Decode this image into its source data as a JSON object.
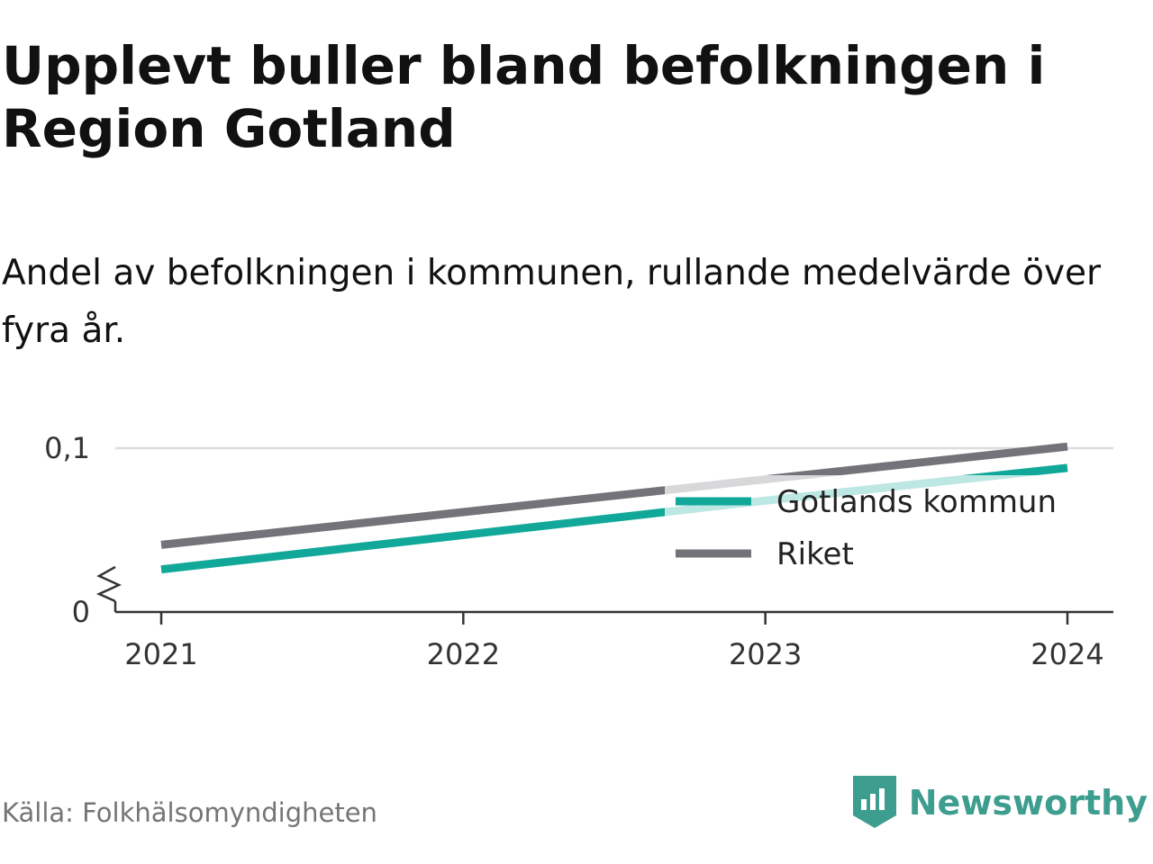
{
  "title": "Upplevt buller bland befolkningen i Region Gotland",
  "subtitle": "Andel av befolkningen i kommunen, rullande medelvärde över fyra år.",
  "source": "Källa: Folkhälsomyndigheten",
  "brand": {
    "name": "Newsworthy",
    "icon": "newsworthy-logo-icon",
    "color": "#3d9e8f"
  },
  "chart_data": {
    "type": "line",
    "x": [
      2021,
      2022,
      2023,
      2024
    ],
    "x_tick_labels": [
      "2021",
      "2022",
      "2023",
      "2024"
    ],
    "y_tick_labels": [
      "0",
      "0,1"
    ],
    "y_ticks": [
      0,
      0.1
    ],
    "ylim": [
      0,
      0.1
    ],
    "y_axis_break": true,
    "grid": true,
    "legend_position": "right",
    "series": [
      {
        "name": "Gotlands kommun",
        "color": "#12a899",
        "values": [
          0.026,
          0.047,
          0.068,
          0.088
        ]
      },
      {
        "name": "Riket",
        "color": "#737379",
        "values": [
          0.041,
          0.061,
          0.081,
          0.101
        ]
      }
    ]
  }
}
